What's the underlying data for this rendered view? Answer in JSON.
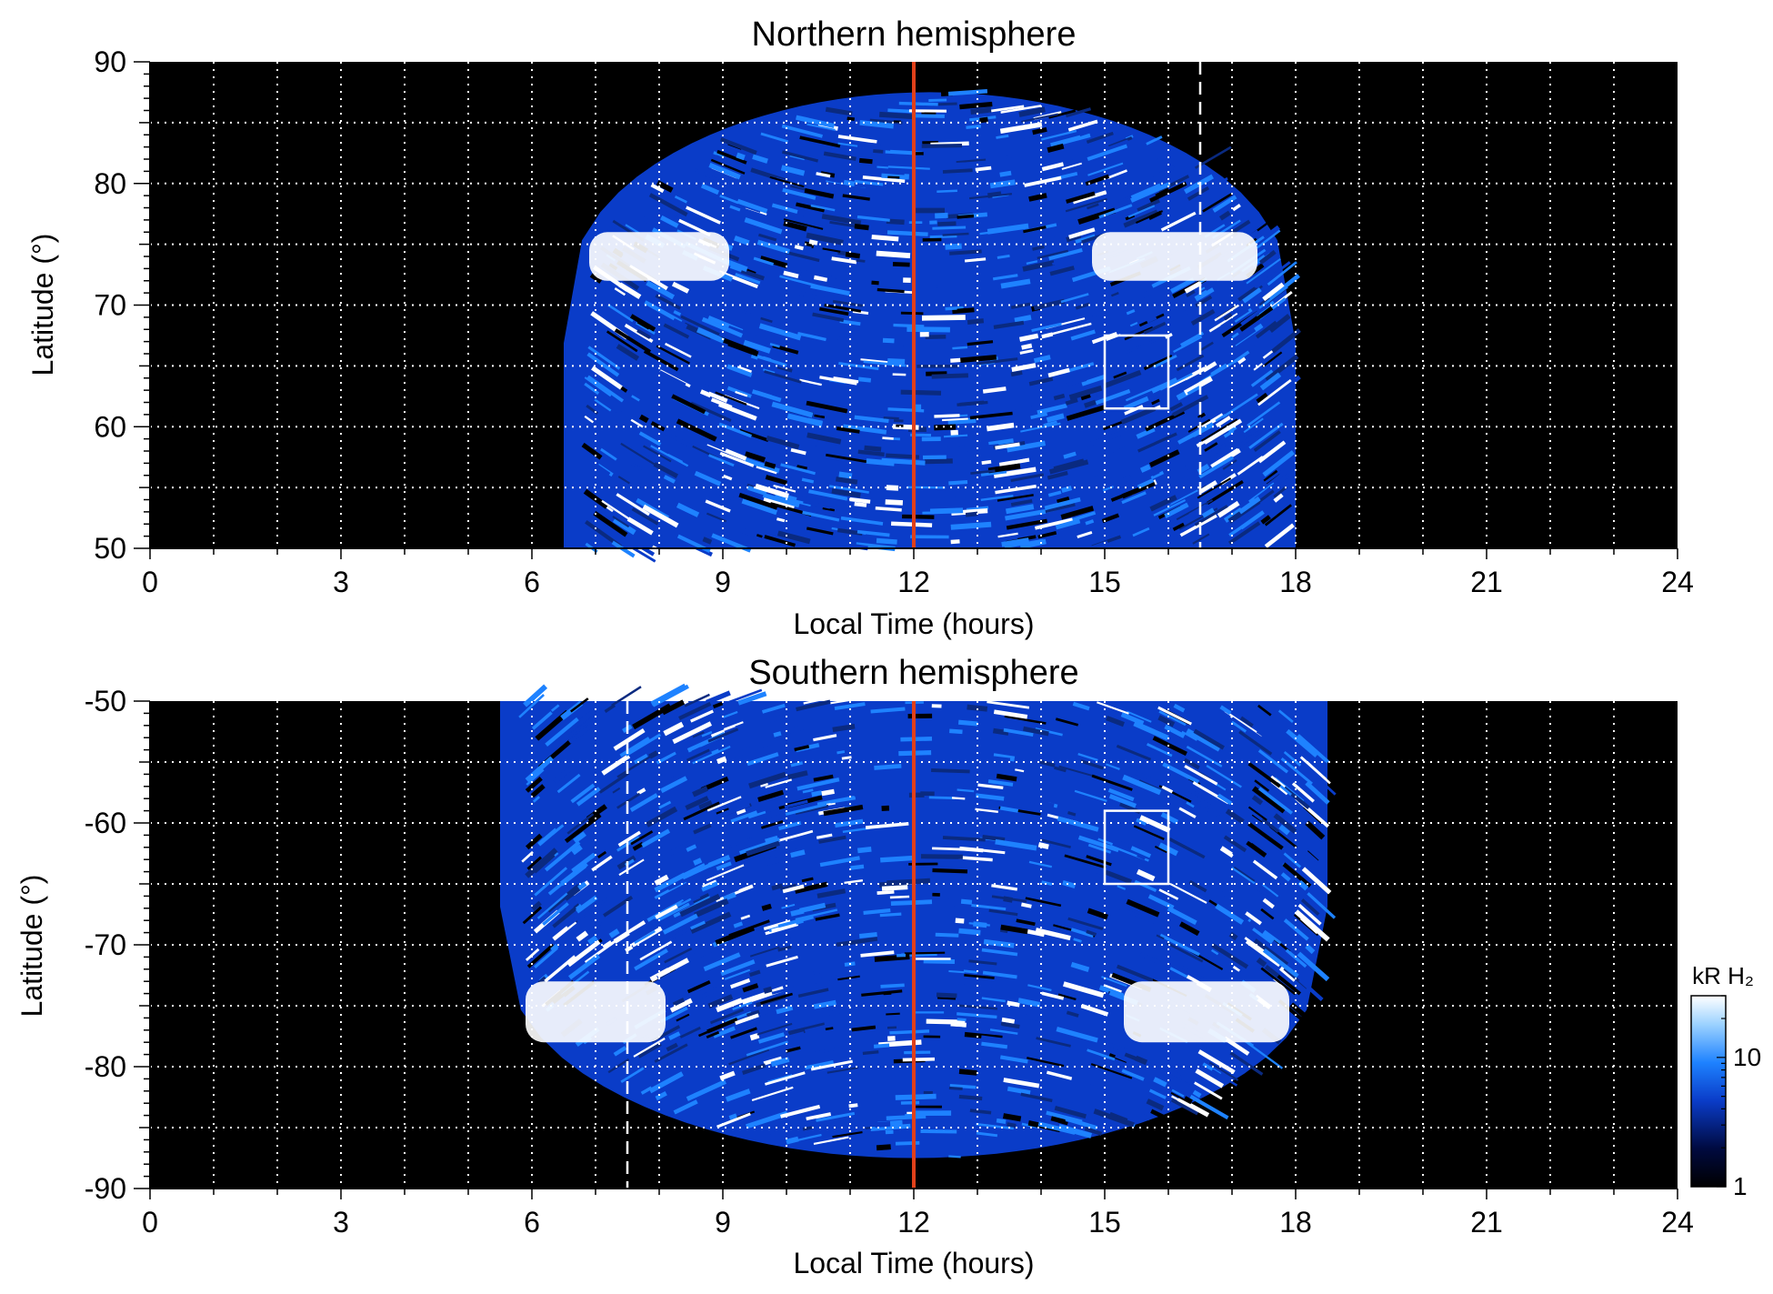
{
  "chart_data": [
    {
      "type": "heatmap",
      "title": "Northern hemisphere",
      "xlabel": "Local Time (hours)",
      "ylabel": "Latitude (°)",
      "xlim": [
        0,
        24
      ],
      "ylim": [
        50,
        90
      ],
      "xticks": [
        "0",
        "3",
        "6",
        "9",
        "12",
        "15",
        "18",
        "21",
        "24"
      ],
      "xtick_values": [
        0,
        3,
        6,
        9,
        12,
        15,
        18,
        21,
        24
      ],
      "yticks": [
        "50",
        "60",
        "70",
        "80",
        "90"
      ],
      "ytick_values": [
        50,
        60,
        70,
        80,
        90
      ],
      "grid": true,
      "grid_x": [
        1,
        2,
        3,
        4,
        5,
        6,
        7,
        8,
        9,
        10,
        11,
        12,
        13,
        14,
        15,
        16,
        17,
        18,
        19,
        20,
        21,
        22,
        23
      ],
      "grid_y": [
        55,
        60,
        65,
        70,
        75,
        80,
        85
      ],
      "noon_line_lt": 12,
      "dashed_line_lt": 16.5,
      "box": {
        "lt": [
          15,
          16
        ],
        "lat": [
          61.5,
          67.5
        ]
      },
      "auroral_oval_band_lat": [
        72,
        76
      ],
      "coverage_lt": [
        6.5,
        18
      ],
      "coverage_lat_max": 87.5
    },
    {
      "type": "heatmap",
      "title": "Southern hemisphere",
      "xlabel": "Local Time (hours)",
      "ylabel": "Latitude (°)",
      "xlim": [
        0,
        24
      ],
      "ylim": [
        -90,
        -50
      ],
      "xticks": [
        "0",
        "3",
        "6",
        "9",
        "12",
        "15",
        "18",
        "21",
        "24"
      ],
      "xtick_values": [
        0,
        3,
        6,
        9,
        12,
        15,
        18,
        21,
        24
      ],
      "yticks": [
        "-90",
        "-80",
        "-70",
        "-60",
        "-50"
      ],
      "ytick_values": [
        -90,
        -80,
        -70,
        -60,
        -50
      ],
      "grid": true,
      "grid_x": [
        1,
        2,
        3,
        4,
        5,
        6,
        7,
        8,
        9,
        10,
        11,
        12,
        13,
        14,
        15,
        16,
        17,
        18,
        19,
        20,
        21,
        22,
        23
      ],
      "grid_y": [
        -85,
        -80,
        -75,
        -70,
        -65,
        -60,
        -55
      ],
      "noon_line_lt": 12,
      "dashed_line_lt": 7.5,
      "box": {
        "lt": [
          15,
          16
        ],
        "lat": [
          -65,
          -59
        ]
      },
      "auroral_oval_band_lat": [
        -78,
        -73
      ],
      "coverage_lt": [
        5.5,
        18.5
      ],
      "coverage_lat_min": -87.5
    }
  ],
  "colorbar": {
    "label": "kR H₂",
    "ticks": [
      "1",
      "10"
    ],
    "tick_values": [
      1,
      10
    ],
    "range": [
      1,
      30
    ],
    "scale": "log",
    "colors": [
      "#000000",
      "#000a40",
      "#0a3cc8",
      "#1e82ff",
      "#9cd2ff",
      "#ffffff"
    ]
  },
  "colors": {
    "background": "#000000",
    "noon_line": "#e0401a",
    "grid": "#ffffff",
    "emission_dark": "#0a3cc8",
    "emission_mid": "#1e82ff",
    "emission_bright": "#ffffff"
  }
}
